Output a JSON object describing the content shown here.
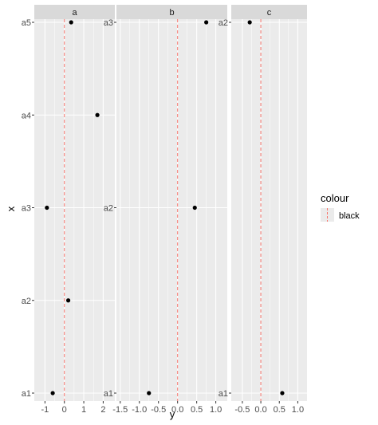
{
  "chart_data": {
    "type": "scatter",
    "xlabel": "y",
    "ylabel": "x",
    "vline_x": 0,
    "colors": {
      "panel": "#ebebeb",
      "strip": "#d9d9d9",
      "grid": "#ffffff",
      "point": "#000000",
      "vline": "#f8766d"
    },
    "legend": {
      "title": "colour",
      "entries": [
        "black"
      ],
      "placement": "right"
    },
    "facets": [
      {
        "strip": "a",
        "xlim": [
          -1.55,
          2.6
        ],
        "xticks": [
          -1,
          0,
          1,
          2
        ],
        "xtick_labels": [
          "-1",
          "0",
          "1",
          "2"
        ],
        "categories": [
          "a1",
          "a2",
          "a3",
          "a4",
          "a5"
        ],
        "points": [
          {
            "x": -0.6,
            "y": "a1"
          },
          {
            "x": 0.2,
            "y": "a2"
          },
          {
            "x": -0.9,
            "y": "a3"
          },
          {
            "x": 1.7,
            "y": "a4"
          },
          {
            "x": 0.35,
            "y": "a5"
          }
        ]
      },
      {
        "strip": "b",
        "xlim": [
          -1.6,
          1.3
        ],
        "xticks": [
          -1.5,
          -1.0,
          -0.5,
          0.0,
          0.5,
          1.0
        ],
        "xtick_labels": [
          "-1.5",
          "-1.0",
          "-0.5",
          "0.0",
          "0.5",
          "1.0"
        ],
        "categories": [
          "a1",
          "a2",
          "a3"
        ],
        "points": [
          {
            "x": -0.75,
            "y": "a1"
          },
          {
            "x": 0.45,
            "y": "a2"
          },
          {
            "x": 0.75,
            "y": "a3"
          }
        ]
      },
      {
        "strip": "c",
        "xlim": [
          -0.8,
          1.25
        ],
        "xticks": [
          -0.5,
          0.0,
          0.5,
          1.0
        ],
        "xtick_labels": [
          "-0.5",
          "0.0",
          "0.5",
          "1.0"
        ],
        "categories": [
          "a1",
          "a2"
        ],
        "points": [
          {
            "x": 0.58,
            "y": "a1"
          },
          {
            "x": -0.3,
            "y": "a2"
          }
        ]
      }
    ]
  }
}
